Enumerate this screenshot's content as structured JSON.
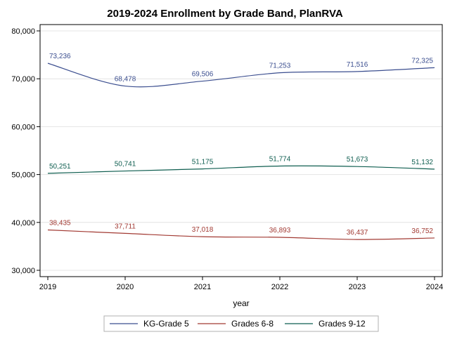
{
  "chart_data": {
    "type": "line",
    "title": "2019-2024 Enrollment by Grade Band, PlanRVA",
    "xlabel": "year",
    "ylabel": "",
    "x": [
      2019,
      2020,
      2021,
      2022,
      2023,
      2024
    ],
    "x_tick_labels": [
      "2019",
      "2020",
      "2021",
      "2022",
      "2023",
      "2024"
    ],
    "ylim": [
      30000,
      80000
    ],
    "y_ticks": [
      30000,
      40000,
      50000,
      60000,
      70000,
      80000
    ],
    "y_tick_labels": [
      "30,000",
      "40,000",
      "50,000",
      "60,000",
      "70,000",
      "80,000"
    ],
    "legend_position": "bottom",
    "grid": true,
    "series": [
      {
        "name": "KG-Grade 5",
        "color": "#3b4e8f",
        "values": [
          73236,
          68478,
          69506,
          71253,
          71516,
          72325
        ],
        "labels": [
          "73,236",
          "68,478",
          "69,506",
          "71,253",
          "71,516",
          "72,325"
        ]
      },
      {
        "name": "Grades 6-8",
        "color": "#a23a33",
        "values": [
          38435,
          37711,
          37018,
          36893,
          36437,
          36752
        ],
        "labels": [
          "38,435",
          "37,711",
          "37,018",
          "36,893",
          "36,437",
          "36,752"
        ]
      },
      {
        "name": "Grades 9-12",
        "color": "#0f5e50",
        "values": [
          50251,
          50741,
          51175,
          51774,
          51673,
          51132
        ],
        "labels": [
          "50,251",
          "50,741",
          "51,175",
          "51,774",
          "51,673",
          "51,132"
        ]
      }
    ]
  }
}
